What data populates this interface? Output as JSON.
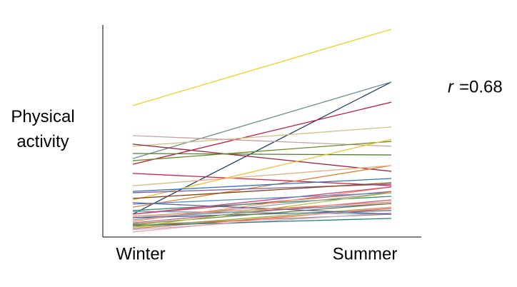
{
  "chart_data": {
    "type": "slope",
    "ylabel": "Physical activity",
    "annotation_symbol": "r",
    "annotation_value": "=0.68",
    "categories": [
      "Winter",
      "Summer"
    ],
    "ylim": [
      0,
      100
    ],
    "series": [
      {
        "color": "#f0d020",
        "values": [
          62.0,
          98.0
        ]
      },
      {
        "color": "#1f3f6f",
        "values": [
          10.8,
          73.1
        ]
      },
      {
        "color": "#6f8f8f",
        "values": [
          37.0,
          73.1
        ]
      },
      {
        "color": "#c0143c",
        "values": [
          34.3,
          63.6
        ]
      },
      {
        "color": "#d0c080",
        "values": [
          42.8,
          51.9
        ]
      },
      {
        "color": "#4f7f2f",
        "values": [
          39.4,
          38.7
        ]
      },
      {
        "color": "#c8a0a0",
        "values": [
          47.8,
          42.8
        ]
      },
      {
        "color": "#a02040",
        "values": [
          43.8,
          31.0
        ]
      },
      {
        "color": "#d02040",
        "values": [
          30.0,
          24.2
        ]
      },
      {
        "color": "#6b8e23",
        "values": [
          36.0,
          45.1
        ]
      },
      {
        "color": "#f0c030",
        "values": [
          17.5,
          46.1
        ]
      },
      {
        "color": "#e08030",
        "values": [
          14.1,
          33.7
        ]
      },
      {
        "color": "#8060a0",
        "values": [
          20.9,
          24.9
        ]
      },
      {
        "color": "#3070c0",
        "values": [
          21.5,
          27.6
        ]
      },
      {
        "color": "#d05050",
        "values": [
          10.8,
          21.5
        ]
      },
      {
        "color": "#2f8f6f",
        "values": [
          12.5,
          19.2
        ]
      },
      {
        "color": "#ff9060",
        "values": [
          7.4,
          23.6
        ]
      },
      {
        "color": "#6080c0",
        "values": [
          9.1,
          15.8
        ]
      },
      {
        "color": "#c06080",
        "values": [
          6.7,
          17.5
        ]
      },
      {
        "color": "#90b040",
        "values": [
          4.7,
          14.1
        ]
      },
      {
        "color": "#406090",
        "values": [
          9.1,
          12.5
        ]
      },
      {
        "color": "#b08050",
        "values": [
          5.7,
          10.8
        ]
      },
      {
        "color": "#e06030",
        "values": [
          4.0,
          13.5
        ]
      },
      {
        "color": "#70a0b0",
        "values": [
          12.1,
          10.8
        ]
      },
      {
        "color": "#a0a0a0",
        "values": [
          8.1,
          20.9
        ]
      },
      {
        "color": "#c0b0e0",
        "values": [
          3.4,
          11.4
        ]
      },
      {
        "color": "#708040",
        "values": [
          6.1,
          15.8
        ]
      },
      {
        "color": "#d04080",
        "values": [
          10.8,
          23.6
        ]
      },
      {
        "color": "#5090d0",
        "values": [
          15.5,
          20.9
        ]
      },
      {
        "color": "#e0b080",
        "values": [
          24.2,
          33.7
        ]
      },
      {
        "color": "#8b4513",
        "values": [
          18.2,
          25.6
        ]
      },
      {
        "color": "#208080",
        "values": [
          5.4,
          8.8
        ]
      },
      {
        "color": "#f0a0a0",
        "values": [
          2.4,
          14.1
        ]
      },
      {
        "color": "#606090",
        "values": [
          16.2,
          10.8
        ]
      },
      {
        "color": "#b0c040",
        "values": [
          4.7,
          20.9
        ]
      },
      {
        "color": "#ff7f50",
        "values": [
          9.8,
          16.5
        ]
      }
    ]
  }
}
